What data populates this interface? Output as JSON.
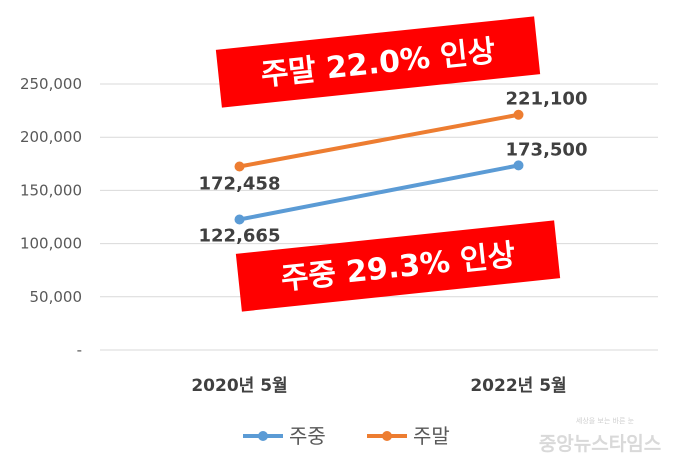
{
  "chart_data": {
    "type": "line",
    "categories": [
      "2020년 5월",
      "2022년 5월"
    ],
    "series": [
      {
        "name": "주중",
        "values": [
          122665,
          173500
        ],
        "labels": [
          "122,665",
          "173,500"
        ],
        "color": "#5B9BD5"
      },
      {
        "name": "주말",
        "values": [
          172458,
          221100
        ],
        "labels": [
          "172,458",
          "221,100"
        ],
        "color": "#ED7D31"
      }
    ],
    "ylim": [
      0,
      250000
    ],
    "yticks": [
      {
        "value": 0,
        "label": "-"
      },
      {
        "value": 50000,
        "label": "50,000"
      },
      {
        "value": 100000,
        "label": "100,000"
      },
      {
        "value": 150000,
        "label": "150,000"
      },
      {
        "value": 200000,
        "label": "200,000"
      },
      {
        "value": 250000,
        "label": "250,000"
      }
    ],
    "grid": true,
    "legend": "bottom",
    "annotations": [
      {
        "text": "주말 22.0% 인상",
        "series": "주말",
        "color": "#FF0000"
      },
      {
        "text": "주중 29.3% 인상",
        "series": "주중",
        "color": "#FF0000"
      }
    ]
  },
  "watermark": {
    "name": "중앙뉴스타임스",
    "tagline": "세상을 보는 바른 눈"
  }
}
